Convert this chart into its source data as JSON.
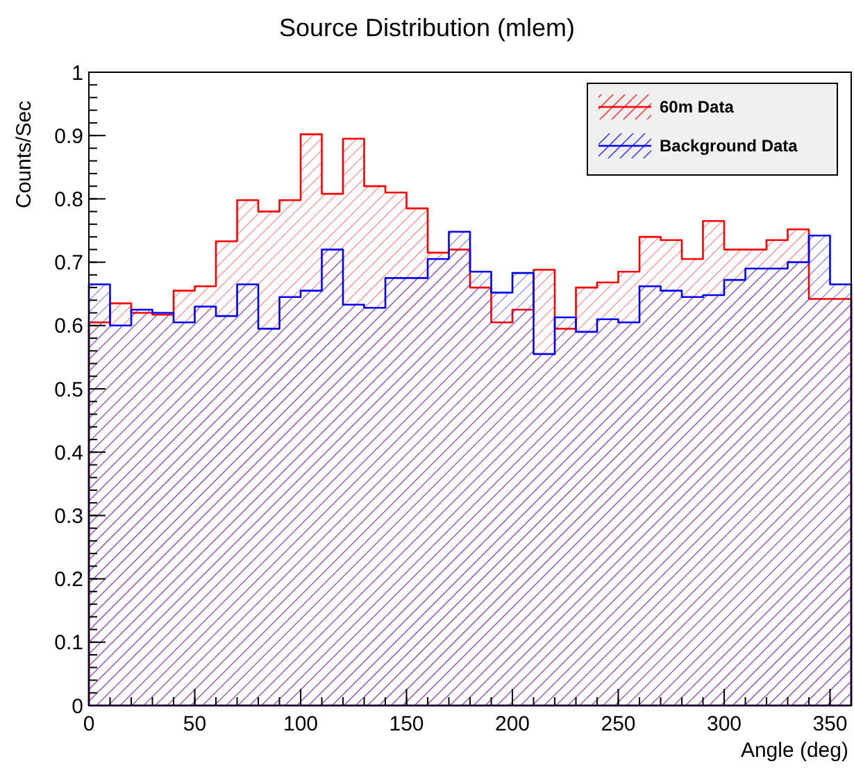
{
  "chart_data": {
    "type": "histogram",
    "title": "Source Distribution (mlem)",
    "xlabel": "Angle (deg)",
    "ylabel": "Counts/Sec",
    "bins": [
      0,
      10,
      20,
      30,
      40,
      50,
      60,
      70,
      80,
      90,
      100,
      110,
      120,
      130,
      140,
      150,
      160,
      170,
      180,
      190,
      200,
      210,
      220,
      230,
      240,
      250,
      260,
      270,
      280,
      290,
      300,
      310,
      320,
      330,
      340,
      350,
      360
    ],
    "series": [
      {
        "name": "60m Data",
        "color": "#ff0000",
        "values": [
          0.605,
          0.635,
          0.62,
          0.617,
          0.655,
          0.662,
          0.733,
          0.798,
          0.78,
          0.798,
          0.902,
          0.808,
          0.895,
          0.82,
          0.81,
          0.785,
          0.715,
          0.72,
          0.66,
          0.605,
          0.625,
          0.688,
          0.595,
          0.66,
          0.668,
          0.685,
          0.74,
          0.735,
          0.705,
          0.765,
          0.72,
          0.72,
          0.735,
          0.752,
          0.642,
          0.642
        ]
      },
      {
        "name": "Background Data",
        "color": "#0000ff",
        "values": [
          0.665,
          0.6,
          0.625,
          0.62,
          0.605,
          0.63,
          0.615,
          0.665,
          0.595,
          0.645,
          0.655,
          0.72,
          0.633,
          0.628,
          0.675,
          0.675,
          0.705,
          0.748,
          0.685,
          0.652,
          0.683,
          0.555,
          0.613,
          0.59,
          0.61,
          0.605,
          0.662,
          0.655,
          0.645,
          0.648,
          0.672,
          0.69,
          0.69,
          0.7,
          0.742,
          0.665
        ]
      }
    ],
    "xlim": [
      0,
      360
    ],
    "xticks": [
      0,
      50,
      100,
      150,
      200,
      250,
      300,
      350
    ],
    "ylim": [
      0,
      1
    ],
    "yticks": [
      0,
      0.1,
      0.2,
      0.3,
      0.4,
      0.5,
      0.6,
      0.7,
      0.8,
      0.9,
      1
    ],
    "grid": false,
    "legend": "top right"
  }
}
